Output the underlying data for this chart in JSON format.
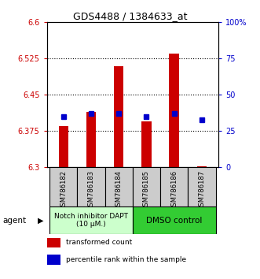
{
  "title": "GDS4488 / 1384633_at",
  "samples": [
    "GSM786182",
    "GSM786183",
    "GSM786184",
    "GSM786185",
    "GSM786186",
    "GSM786187"
  ],
  "transformed_counts": [
    6.385,
    6.415,
    6.51,
    6.395,
    6.535,
    6.302
  ],
  "percentile_ranks": [
    35,
    37,
    37,
    35,
    37,
    33
  ],
  "ylim_left": [
    6.3,
    6.6
  ],
  "ylim_right": [
    0,
    100
  ],
  "yticks_left": [
    6.3,
    6.375,
    6.45,
    6.525,
    6.6
  ],
  "ytick_labels_left": [
    "6.3",
    "6.375",
    "6.45",
    "6.525",
    "6.6"
  ],
  "yticks_right": [
    0,
    25,
    50,
    75,
    100
  ],
  "ytick_labels_right": [
    "0",
    "25",
    "50",
    "75",
    "100%"
  ],
  "bar_bottom": 6.3,
  "bar_color": "#cc0000",
  "blue_color": "#0000cc",
  "group1_label": "Notch inhibitor DAPT\n(10 μM.)",
  "group2_label": "DMSO control",
  "group1_color": "#ccffcc",
  "group2_color": "#33cc33",
  "agent_label": "agent",
  "legend1": "transformed count",
  "legend2": "percentile rank within the sample",
  "sample_box_color": "#cccccc",
  "bar_width": 0.35
}
